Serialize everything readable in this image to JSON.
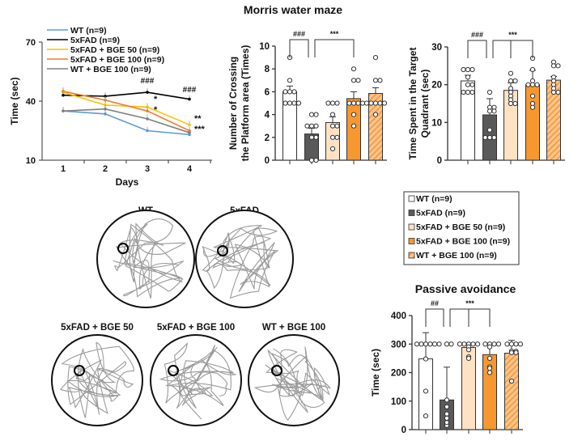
{
  "figure_title": "Morris water maze",
  "group_colors": {
    "WT": "#ffffff",
    "5xFAD": "#595959",
    "5xFAD + BGE 50": "#fde2c4",
    "5xFAD + BGE 100": "#f7972f",
    "WT + BGE 100": "hatched #f7972f"
  },
  "chart_data": [
    {
      "type": "line",
      "title": "",
      "xlabel": "Days",
      "ylabel": "Time (sec)",
      "x": [
        1,
        2,
        3,
        4
      ],
      "ylim": [
        10,
        70
      ],
      "yticks": [
        10,
        40,
        70
      ],
      "legend": "top-left",
      "series": [
        {
          "name": "WT (n=9)",
          "color": "#5b9bd5",
          "values": [
            35,
            33.5,
            25,
            23
          ]
        },
        {
          "name": "5xFAD (n=9)",
          "color": "#000000",
          "values": [
            43,
            42.5,
            44.5,
            41
          ]
        },
        {
          "name": "5xFAD + BGE 50 (n=9)",
          "color": "#ffc000",
          "values": [
            44.5,
            38,
            37,
            28
          ]
        },
        {
          "name": "5xFAD + BGE 100 (n=9)",
          "color": "#ed7d31",
          "values": [
            45,
            40.5,
            35,
            25
          ]
        },
        {
          "name": "WT + BGE 100 (n=9)",
          "color": "#808080",
          "values": [
            35,
            36,
            31,
            24
          ]
        }
      ],
      "annotations": [
        "###",
        "###",
        "*",
        "*",
        "**",
        "***"
      ]
    },
    {
      "type": "bar",
      "title": "",
      "ylabel": "Number of Crossing the Platform area (Times)",
      "ylim": [
        0,
        10
      ],
      "yticks": [
        0,
        2,
        4,
        6,
        8,
        10
      ],
      "categories": [
        "WT",
        "5xFAD",
        "5xFAD + BGE 50",
        "5xFAD + BGE 100",
        "WT + BGE 100"
      ],
      "values": [
        6.0,
        2.3,
        3.3,
        5.4,
        5.85
      ],
      "sem": [
        0.5,
        0.5,
        0.5,
        0.6,
        0.5
      ],
      "points": [
        [
          9,
          7,
          6,
          6,
          6,
          5,
          5,
          5,
          5
        ],
        [
          4,
          4,
          3,
          3,
          3,
          2,
          2,
          0,
          0
        ],
        [
          5,
          5,
          5,
          4,
          3,
          3,
          2,
          2,
          1
        ],
        [
          8,
          7,
          7,
          5,
          5,
          5,
          5,
          4,
          3
        ],
        [
          9,
          7,
          7,
          5,
          5,
          5,
          5,
          5,
          4
        ]
      ],
      "significance": [
        {
          "label": "###",
          "from": 0,
          "to": [
            1
          ]
        },
        {
          "label": "***",
          "from": 1,
          "to": [
            3
          ]
        }
      ]
    },
    {
      "type": "bar",
      "title": "",
      "ylabel": "Time Spent in the Target Quadrant (sec)",
      "ylim": [
        0,
        30
      ],
      "yticks": [
        0,
        10,
        20,
        30
      ],
      "categories": [
        "WT",
        "5xFAD",
        "5xFAD + BGE 50",
        "5xFAD + BGE 100",
        "WT + BGE 100"
      ],
      "values": [
        21,
        12,
        18.5,
        20,
        21.2
      ],
      "sem": [
        1.5,
        4.3,
        2.0,
        3.8,
        1.0
      ],
      "points": [
        [
          24,
          24,
          24,
          22,
          20,
          20,
          18,
          18,
          18
        ],
        [
          18,
          14,
          14,
          13,
          13,
          8,
          6,
          6,
          6
        ],
        [
          23,
          21,
          21,
          19,
          18,
          17,
          16,
          15,
          15
        ],
        [
          27,
          24,
          21,
          20,
          20,
          20,
          17,
          15,
          14
        ],
        [
          26,
          25,
          25,
          22,
          21,
          20,
          19,
          18,
          18
        ]
      ],
      "significance": [
        {
          "label": "###",
          "from": 0,
          "to": [
            1
          ]
        },
        {
          "label": "***",
          "from": 1,
          "to": [
            2,
            3
          ]
        }
      ]
    },
    {
      "type": "bar",
      "title": "Passive avoidance",
      "ylabel": "Time (sec)",
      "ylim": [
        0,
        400
      ],
      "yticks": [
        0,
        100,
        200,
        300,
        400
      ],
      "categories": [
        "WT",
        "5xFAD",
        "5xFAD + BGE 50",
        "5xFAD + BGE 100",
        "WT + BGE 100"
      ],
      "values": [
        248,
        104,
        288,
        263,
        268
      ],
      "sem": [
        92,
        115,
        15,
        40,
        45
      ],
      "points": [
        [
          300,
          300,
          300,
          300,
          300,
          248,
          135,
          48,
          300
        ],
        [
          300,
          300,
          104,
          80,
          55,
          40,
          20,
          15,
          25
        ],
        [
          300,
          300,
          300,
          300,
          300,
          290,
          280,
          255,
          250
        ],
        [
          300,
          300,
          300,
          300,
          250,
          220,
          215,
          200,
          290
        ],
        [
          300,
          300,
          300,
          300,
          275,
          270,
          275,
          270,
          170
        ]
      ],
      "significance": [
        {
          "label": "##",
          "from": 0,
          "to": [
            1
          ]
        },
        {
          "label": "***",
          "from": 1,
          "to": [
            2,
            3
          ]
        }
      ]
    }
  ],
  "bar_legend": [
    "WT (n=9)",
    "5xFAD (n=9)",
    "5xFAD + BGE 50 (n=9)",
    "5xFAD + BGE 100 (n=9)",
    "WT + BGE 100 (n=9)"
  ],
  "mazes": [
    {
      "label": "WT"
    },
    {
      "label": "5xFAD"
    },
    {
      "label": "5xFAD + BGE 50"
    },
    {
      "label": "5xFAD + BGE 100"
    },
    {
      "label": "WT + BGE 100"
    }
  ]
}
